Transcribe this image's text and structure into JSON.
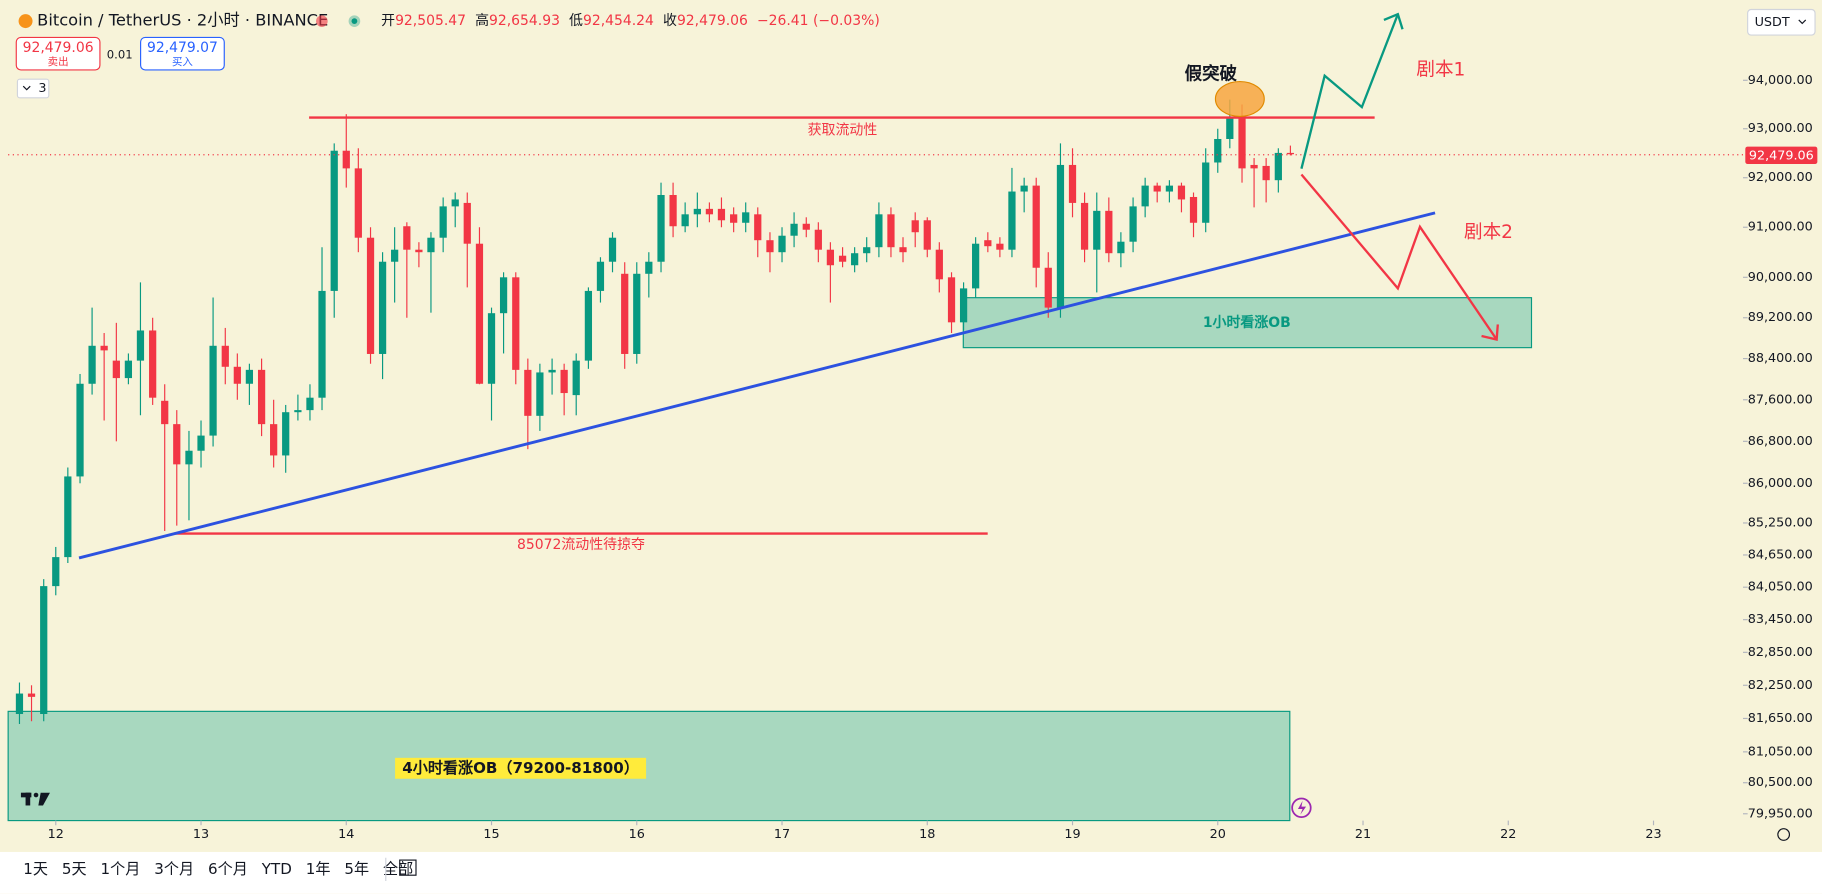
{
  "header": {
    "symbol": "Bitcoin / TetherUS · 2小时 · BINANCE",
    "ohlc": [
      {
        "label": "开",
        "value": "92,505.47"
      },
      {
        "label": "高",
        "value": "92,654.93"
      },
      {
        "label": "低",
        "value": "92,454.24"
      },
      {
        "label": "收",
        "value": "92,479.06"
      }
    ],
    "change": "−26.41 (−0.03%)",
    "currency": "USDT"
  },
  "trade": {
    "sell_price": "92,479.06",
    "sell_label": "卖出",
    "spread": "0.01",
    "buy_price": "92,479.07",
    "buy_label": "买入",
    "indicators": "3"
  },
  "annotations": {
    "liquidity_top": "获取流动性",
    "liquidity_bottom": "85072流动性待掠夺",
    "fake_breakout": "假突破",
    "scenario_1": "剧本1",
    "scenario_2": "剧本2",
    "ob_1h": "1小时看涨OB",
    "ob_4h": "4小时看涨OB（79200-81800）"
  },
  "current_price_label": "92,479.06",
  "toolbar": [
    "1天",
    "5天",
    "1个月",
    "3个月",
    "6个月",
    "YTD",
    "1年",
    "5年",
    "全部"
  ],
  "chart_data": {
    "type": "candlestick",
    "log_scale": true,
    "up_color": "#089981",
    "down_color": "#f23645",
    "xlim": [
      11.672,
      23.616
    ],
    "xticks": [
      12,
      13,
      14,
      15,
      16,
      17,
      18,
      19,
      20,
      21,
      22,
      23
    ],
    "ylim": [
      79830,
      95480
    ],
    "yticks": [
      {
        "value": 94000,
        "label": "94,000.00"
      },
      {
        "value": 93000,
        "label": "93,000.00"
      },
      {
        "value": 92000,
        "label": "92,000.00"
      },
      {
        "value": 91000,
        "label": "91,000.00"
      },
      {
        "value": 90000,
        "label": "90,000.00"
      },
      {
        "value": 89200,
        "label": "89,200.00"
      },
      {
        "value": 88400,
        "label": "88,400.00"
      },
      {
        "value": 87600,
        "label": "87,600.00"
      },
      {
        "value": 86800,
        "label": "86,800.00"
      },
      {
        "value": 86000,
        "label": "86,000.00"
      },
      {
        "value": 85250,
        "label": "85,250.00"
      },
      {
        "value": 84650,
        "label": "84,650.00"
      },
      {
        "value": 84050,
        "label": "84,050.00"
      },
      {
        "value": 83450,
        "label": "83,450.00"
      },
      {
        "value": 82850,
        "label": "82,850.00"
      },
      {
        "value": 82250,
        "label": "82,250.00"
      },
      {
        "value": 81650,
        "label": "81,650.00"
      },
      {
        "value": 81050,
        "label": "81,050.00"
      },
      {
        "value": 80500,
        "label": "80,500.00"
      },
      {
        "value": 79950,
        "label": "79,950.00"
      }
    ],
    "x": [
      11.75,
      11.833,
      11.917,
      12,
      12.083,
      12.167,
      12.25,
      12.333,
      12.417,
      12.5,
      12.583,
      12.667,
      12.75,
      12.833,
      12.917,
      13,
      13.083,
      13.167,
      13.25,
      13.333,
      13.417,
      13.5,
      13.583,
      13.667,
      13.75,
      13.833,
      13.917,
      14,
      14.083,
      14.167,
      14.25,
      14.333,
      14.417,
      14.5,
      14.583,
      14.667,
      14.75,
      14.833,
      14.917,
      15,
      15.083,
      15.167,
      15.25,
      15.333,
      15.417,
      15.5,
      15.583,
      15.667,
      15.75,
      15.833,
      15.917,
      16,
      16.083,
      16.167,
      16.25,
      16.333,
      16.417,
      16.5,
      16.583,
      16.667,
      16.75,
      16.833,
      16.917,
      17,
      17.083,
      17.167,
      17.25,
      17.333,
      17.417,
      17.5,
      17.583,
      17.667,
      17.75,
      17.833,
      17.917,
      18,
      18.083,
      18.167,
      18.25,
      18.333,
      18.417,
      18.5,
      18.583,
      18.667,
      18.75,
      18.833,
      18.917,
      19,
      19.083,
      19.167,
      19.25,
      19.333,
      19.417,
      19.5,
      19.583,
      19.667,
      19.75,
      19.833,
      19.917,
      20,
      20.083,
      20.167,
      20.25,
      20.333,
      20.417,
      20.5
    ],
    "open": [
      81730,
      82100,
      81730,
      84070,
      84610,
      86130,
      87910,
      88650,
      88360,
      88020,
      88360,
      88950,
      87580,
      87130,
      86360,
      86620,
      86910,
      88650,
      88240,
      87910,
      88180,
      87130,
      86530,
      87360,
      87400,
      87640,
      89730,
      92550,
      92190,
      90790,
      88490,
      90310,
      91020,
      90550,
      90500,
      90790,
      91420,
      91490,
      90670,
      87910,
      89290,
      90000,
      88180,
      87290,
      88130,
      88180,
      87690,
      88360,
      89730,
      90310,
      90070,
      88490,
      90070,
      90310,
      91650,
      91020,
      91260,
      91370,
      91370,
      91260,
      91090,
      91260,
      90740,
      90500,
      90830,
      91070,
      90950,
      90550,
      90430,
      90240,
      90480,
      90600,
      91260,
      90600,
      91140,
      91140,
      90550,
      90000,
      89110,
      89780,
      90740,
      90670,
      90550,
      91720,
      91840,
      90190,
      89400,
      92260,
      91490,
      90550,
      91330,
      90480,
      90710,
      91420,
      91840,
      91720,
      91840,
      91610,
      91090,
      92310,
      92790,
      93210,
      92260,
      92240,
      91950,
      92505.47
    ],
    "high": [
      82300,
      82250,
      84200,
      84800,
      86300,
      88100,
      89400,
      88900,
      89100,
      88500,
      89900,
      89200,
      87900,
      87400,
      87000,
      87200,
      89600,
      89000,
      88500,
      88300,
      88400,
      87600,
      87500,
      87700,
      87900,
      90600,
      92700,
      93300,
      92600,
      91000,
      90500,
      91000,
      91100,
      90700,
      90900,
      91600,
      91700,
      91700,
      91000,
      89400,
      90100,
      90100,
      88400,
      88300,
      88400,
      88300,
      88500,
      89800,
      90400,
      90900,
      90300,
      90300,
      90500,
      91900,
      91900,
      91500,
      91700,
      91500,
      91600,
      91400,
      91500,
      91400,
      90900,
      91000,
      91300,
      91200,
      91100,
      90700,
      90600,
      90600,
      90800,
      91500,
      91400,
      90800,
      91300,
      91200,
      90700,
      90100,
      89900,
      90800,
      90900,
      90800,
      92200,
      92000,
      92000,
      90500,
      92700,
      92600,
      91700,
      91700,
      91600,
      90900,
      91600,
      92000,
      91900,
      91950,
      91900,
      91700,
      92600,
      93000,
      93600,
      93500,
      92400,
      92400,
      92600,
      92654.93
    ],
    "low": [
      81550,
      81600,
      81600,
      83900,
      84500,
      86000,
      87700,
      87200,
      86800,
      87900,
      87300,
      87500,
      85100,
      85200,
      85300,
      86300,
      86700,
      87900,
      87600,
      87500,
      86900,
      86300,
      86200,
      87200,
      87200,
      87400,
      89200,
      91800,
      90500,
      88300,
      88000,
      89500,
      89200,
      90200,
      89300,
      90500,
      91000,
      89800,
      87900,
      87200,
      88500,
      87900,
      86650,
      87000,
      87700,
      87300,
      87300,
      88200,
      89500,
      90100,
      88200,
      88300,
      89600,
      90100,
      90800,
      90900,
      91000,
      91100,
      91000,
      90900,
      90900,
      90400,
      90100,
      90300,
      90600,
      90800,
      90300,
      89500,
      90200,
      90100,
      90300,
      90400,
      90400,
      90300,
      90600,
      90400,
      89700,
      88900,
      88950,
      89600,
      90500,
      90400,
      90400,
      91300,
      89800,
      89200,
      89200,
      91200,
      90300,
      89700,
      90300,
      90200,
      90500,
      91200,
      91500,
      91500,
      91300,
      90800,
      90900,
      92100,
      92600,
      91900,
      91400,
      91500,
      91700,
      92454.24
    ],
    "close": [
      82100,
      82040,
      84070,
      84610,
      86130,
      87910,
      88650,
      88560,
      88020,
      88360,
      88950,
      87640,
      87130,
      86360,
      86620,
      86910,
      88650,
      88240,
      87910,
      88180,
      87130,
      86530,
      87360,
      87400,
      87640,
      89730,
      92550,
      92190,
      90790,
      88490,
      90310,
      90550,
      90550,
      90500,
      90790,
      91420,
      91560,
      90670,
      87910,
      89290,
      90000,
      88180,
      87290,
      88130,
      88180,
      87730,
      88360,
      89730,
      90310,
      90790,
      88490,
      90070,
      90310,
      91650,
      91020,
      91260,
      91370,
      91260,
      91140,
      91090,
      91300,
      90740,
      90500,
      90830,
      91070,
      90950,
      90550,
      90240,
      90310,
      90480,
      90600,
      91260,
      90600,
      90500,
      90900,
      90550,
      89960,
      89110,
      89780,
      90670,
      90620,
      90550,
      91720,
      91840,
      90190,
      89400,
      92260,
      91490,
      90550,
      91330,
      90480,
      90710,
      91420,
      91840,
      91720,
      91840,
      91560,
      91090,
      92310,
      92790,
      93210,
      92190,
      92190,
      91950,
      92505.47,
      92479.06
    ]
  }
}
